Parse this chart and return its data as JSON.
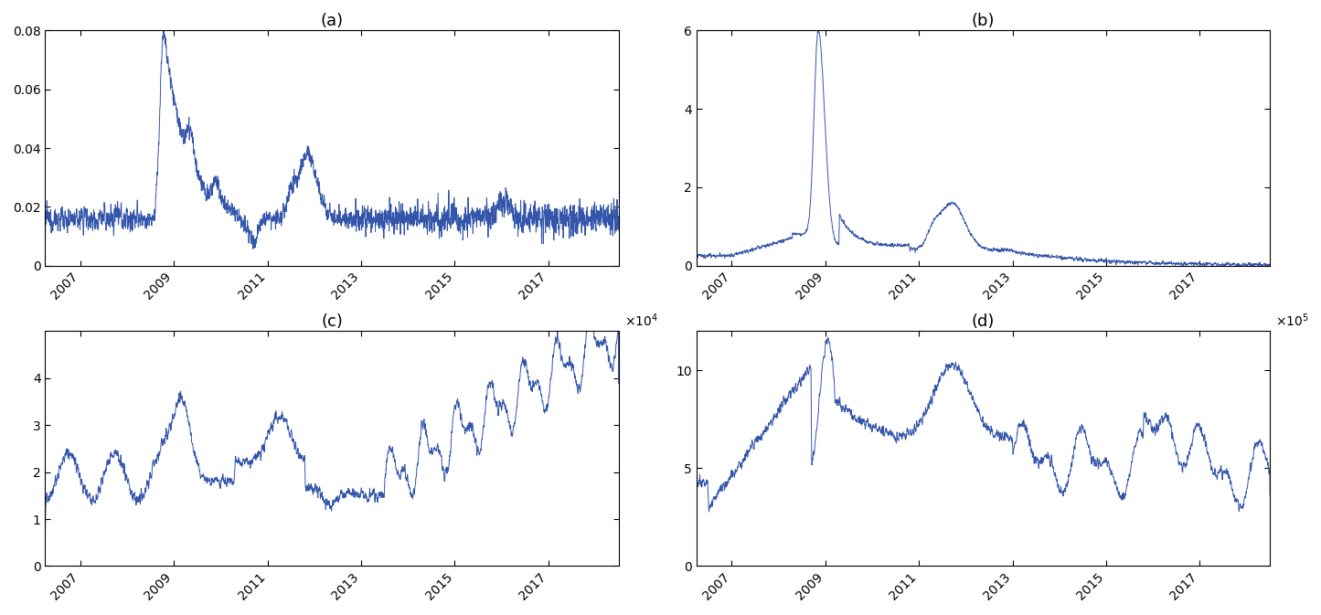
{
  "title_a": "(a)",
  "title_b": "(b)",
  "title_c": "(c)",
  "title_d": "(d)",
  "line_color": "#3355aa",
  "line_width": 0.7,
  "start_year": 2006.25,
  "end_year": 2018.5,
  "xticks": [
    2007,
    2009,
    2011,
    2013,
    2015,
    2017
  ],
  "ylim_a": [
    0,
    0.08
  ],
  "yticks_a": [
    0,
    0.02,
    0.04,
    0.06,
    0.08
  ],
  "ylim_b": [
    0,
    6
  ],
  "yticks_b": [
    0,
    2,
    4,
    6
  ],
  "ylim_c": [
    0,
    50000
  ],
  "yticks_c": [
    0,
    10000,
    20000,
    30000,
    40000
  ],
  "ylim_d": [
    0,
    1200000
  ],
  "yticks_d": [
    0,
    500000,
    1000000
  ],
  "seed": 12345
}
